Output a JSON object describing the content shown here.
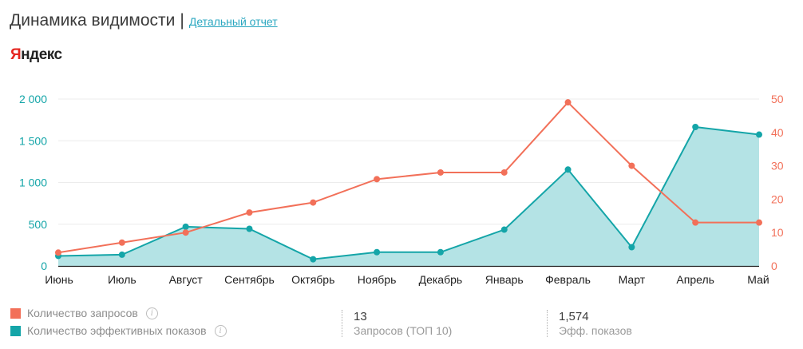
{
  "header": {
    "title": "Динамика видимости",
    "separator": "|",
    "link": "Детальный отчет"
  },
  "logo": {
    "first": "Я",
    "rest": "ндекс"
  },
  "legend": {
    "queries": {
      "label": "Количество запросов",
      "color": "#f27059"
    },
    "impressions": {
      "label": "Количество эффективных показов",
      "color": "#14a5a8"
    },
    "info_icon": "info-circle-icon"
  },
  "stats": [
    {
      "value": "13",
      "label": "Запросов (ТОП 10)"
    },
    {
      "value": "1,574",
      "label": "Эфф. показов"
    }
  ],
  "chart_data": {
    "type": "line",
    "categories": [
      "Июнь",
      "Июль",
      "Август",
      "Сентябрь",
      "Октябрь",
      "Ноябрь",
      "Декабрь",
      "Январь",
      "Февраль",
      "Март",
      "Апрель",
      "Май"
    ],
    "series": [
      {
        "name": "Количество эффективных показов",
        "axis": "left",
        "style": "area",
        "color": "#14a5a8",
        "fill": "#b4e3e5",
        "values": [
          120,
          135,
          470,
          445,
          80,
          165,
          165,
          435,
          1155,
          225,
          1665,
          1574
        ]
      },
      {
        "name": "Количество запросов",
        "axis": "right",
        "style": "line",
        "color": "#f27059",
        "values": [
          4,
          7,
          10,
          16,
          19,
          26,
          28,
          28,
          49,
          30,
          13,
          13
        ]
      }
    ],
    "y_left": {
      "min": 0,
      "max": 2000,
      "ticks": [
        0,
        500,
        1000,
        1500,
        2000
      ],
      "tick_labels": [
        "0",
        "500",
        "1 000",
        "1 500",
        "2 000"
      ],
      "color": "#14a5a8"
    },
    "y_right": {
      "min": 0,
      "max": 50,
      "ticks": [
        0,
        10,
        20,
        30,
        40,
        50
      ],
      "tick_labels": [
        "0",
        "10",
        "20",
        "30",
        "40",
        "50"
      ],
      "color": "#f27059"
    },
    "grid": true,
    "legend_position": "bottom-left"
  }
}
